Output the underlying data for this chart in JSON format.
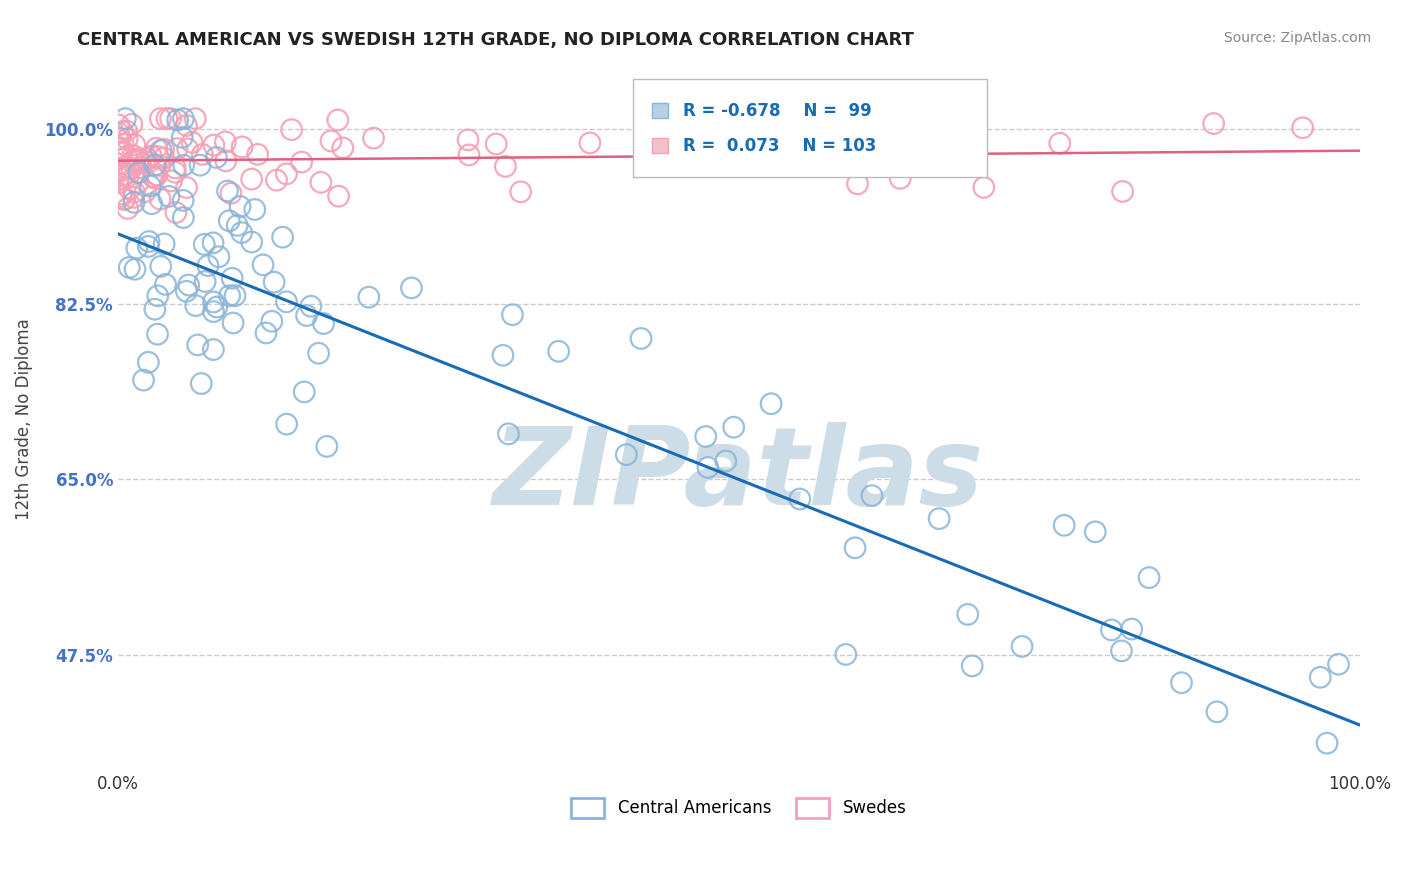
{
  "title": "CENTRAL AMERICAN VS SWEDISH 12TH GRADE, NO DIPLOMA CORRELATION CHART",
  "source_text": "Source: ZipAtlas.com",
  "ylabel": "12th Grade, No Diploma",
  "xlim": [
    0.0,
    1.0
  ],
  "ylim": [
    0.36,
    1.06
  ],
  "x_ticks": [
    0.0,
    1.0
  ],
  "x_tick_labels": [
    "0.0%",
    "100.0%"
  ],
  "y_ticks": [
    0.475,
    0.65,
    0.825,
    1.0
  ],
  "y_tick_labels": [
    "47.5%",
    "65.0%",
    "82.5%",
    "100.0%"
  ],
  "legend_r_blue": "-0.678",
  "legend_n_blue": "99",
  "legend_r_pink": "0.073",
  "legend_n_pink": "103",
  "blue_color": "#8ab4d8",
  "pink_color": "#f4a0b5",
  "trend_blue_color": "#1a6bb5",
  "trend_pink_color": "#e06080",
  "watermark_text": "ZIPatlas",
  "watermark_color": "#ccdde8",
  "background_color": "#ffffff",
  "grid_color": "#cccccc",
  "tick_color": "#4472c4",
  "title_color": "#222222",
  "source_color": "#888888",
  "trend_blue_start_y": 0.895,
  "trend_blue_end_y": 0.405,
  "trend_pink_start_y": 0.968,
  "trend_pink_end_y": 0.978
}
